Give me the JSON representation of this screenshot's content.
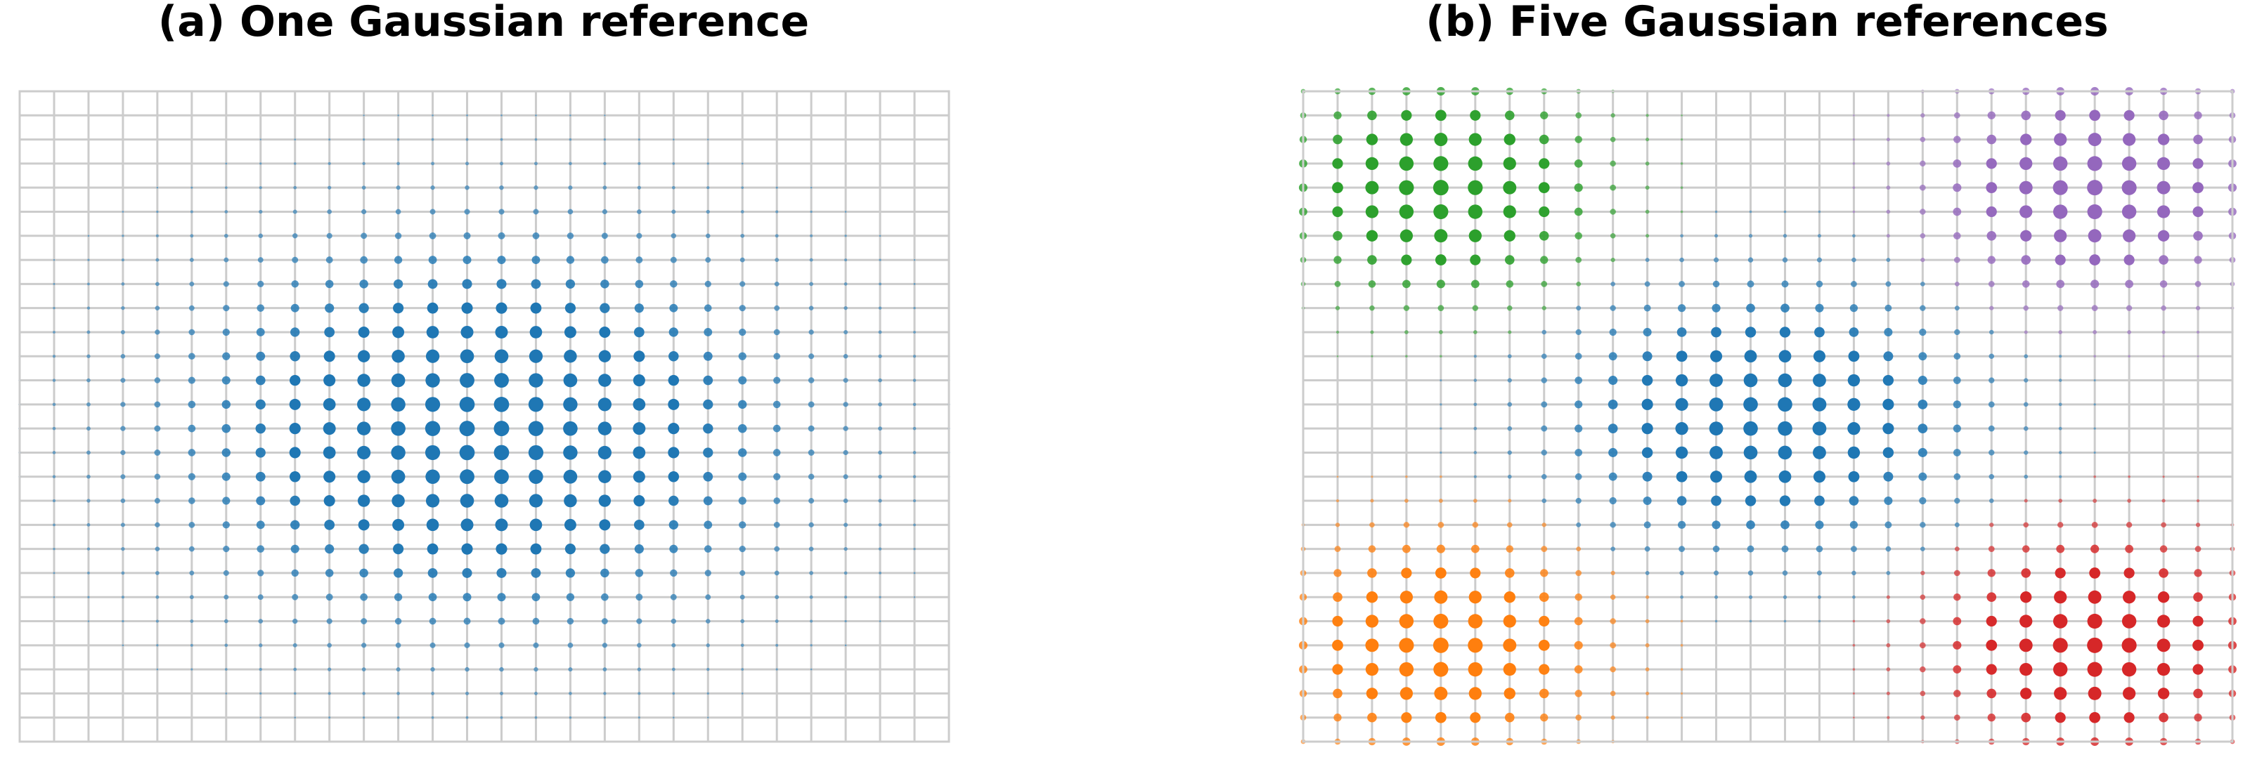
{
  "chart_data": [
    {
      "type": "scatter",
      "title": "(a) One Gaussian reference",
      "grid": true,
      "axes_visible": false,
      "lattice": {
        "columns": 28,
        "rows": 28
      },
      "marker_size_encoding": "density",
      "components": [
        {
          "color": "#1f77b4",
          "center": [
            13.5,
            14.0
          ],
          "spread": [
            5.0,
            4.5
          ],
          "weight": 1.0
        }
      ]
    },
    {
      "type": "scatter",
      "title": "(b) Five Gaussian references",
      "grid": true,
      "axes_visible": false,
      "lattice": {
        "columns": 28,
        "rows": 28
      },
      "marker_size_encoding": "density",
      "components": [
        {
          "color": "#2ca02c",
          "center": [
            4.0,
            4.0
          ],
          "spread": [
            2.6,
            2.6
          ],
          "weight": 1.0
        },
        {
          "color": "#9467bd",
          "center": [
            23.0,
            4.0
          ],
          "spread": [
            2.6,
            2.6
          ],
          "weight": 1.0
        },
        {
          "color": "#1f77b4",
          "center": [
            13.5,
            13.5
          ],
          "spread": [
            3.5,
            3.2
          ],
          "weight": 0.9
        },
        {
          "color": "#ff7f0e",
          "center": [
            4.0,
            23.0
          ],
          "spread": [
            2.6,
            2.6
          ],
          "weight": 1.0
        },
        {
          "color": "#d62728",
          "center": [
            23.0,
            23.0
          ],
          "spread": [
            2.6,
            2.6
          ],
          "weight": 1.0
        }
      ]
    }
  ]
}
